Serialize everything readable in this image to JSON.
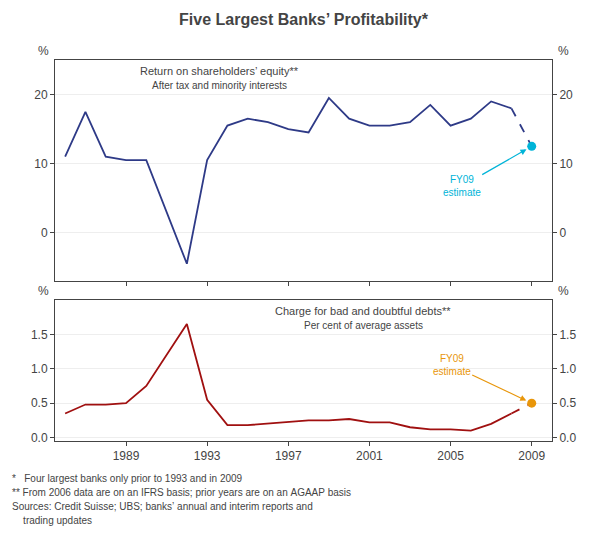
{
  "title": "Five Largest Banks’ Profitability*",
  "footnotes": [
    "*   Four largest banks only prior to 1993 and in 2009",
    "** From 2006 data are on an IFRS basis; prior years are on an AGAAP basis",
    "Sources: Credit Suisse; UBS; banks’ annual and interim reports and",
    "    trading updates"
  ],
  "chart_data": [
    {
      "type": "line",
      "title": "Return on shareholders’ equity**",
      "subtitle": "After tax and minority interests",
      "ylabel": "%",
      "y2label": "%",
      "x": [
        1986,
        1987,
        1988,
        1989,
        1990,
        1991,
        1992,
        1993,
        1994,
        1995,
        1996,
        1997,
        1998,
        1999,
        2000,
        2001,
        2002,
        2003,
        2004,
        2005,
        2006,
        2007,
        2008
      ],
      "values": [
        11.0,
        17.5,
        11.0,
        10.5,
        10.5,
        3.0,
        -4.5,
        10.5,
        15.5,
        16.5,
        16.0,
        15.0,
        14.5,
        19.5,
        16.5,
        15.5,
        15.5,
        16.0,
        18.5,
        15.5,
        16.5,
        19.0,
        18.0
      ],
      "color": "#2e3a87",
      "estimate": {
        "x": 2009,
        "value": 12.5,
        "color": "#00b4d8",
        "line_style": "dashed",
        "marker": "circle"
      },
      "annotations": [
        {
          "text": "FY09\nestimate",
          "x": 2009,
          "y": 12.5,
          "color": "#00b4d8"
        }
      ],
      "xlim": [
        1985.5,
        2010.0
      ],
      "xticks": [
        1989,
        1993,
        1997,
        2001,
        2005,
        2009
      ],
      "ylim": [
        -7,
        25
      ],
      "yticks": [
        0,
        10,
        20
      ],
      "y2lim": [
        -7,
        25
      ],
      "y2ticks": [
        0,
        10,
        20
      ],
      "grid": true,
      "tick_labels": "y"
    },
    {
      "type": "line",
      "title": "Charge for bad and doubtful debts**",
      "subtitle": "Per cent of average assets",
      "ylabel": "%",
      "y2label": "%",
      "x": [
        1986,
        1987,
        1988,
        1989,
        1990,
        1991,
        1992,
        1993,
        1994,
        1995,
        1996,
        1997,
        1998,
        1999,
        2000,
        2001,
        2002,
        2003,
        2004,
        2005,
        2006,
        2007,
        2008
      ],
      "values": [
        0.35,
        0.48,
        0.48,
        0.5,
        0.75,
        1.2,
        1.65,
        0.55,
        0.18,
        0.18,
        0.2,
        0.22,
        0.25,
        0.25,
        0.27,
        0.22,
        0.22,
        0.15,
        0.12,
        0.12,
        0.1,
        0.2,
        0.35
      ],
      "color": "#a01010",
      "estimate": {
        "x": 2009,
        "value": 0.5,
        "color": "#e8960a",
        "line_style": "dashed",
        "marker": "circle"
      },
      "annotations": [
        {
          "text": "FY09\nestimate",
          "x": 2009,
          "y": 0.5,
          "color": "#e8960a"
        }
      ],
      "xlim": [
        1985.5,
        2010.0
      ],
      "xticks": [
        1989,
        1993,
        1997,
        2001,
        2005,
        2009
      ],
      "ylim": [
        -0.05,
        2.0
      ],
      "yticks": [
        {
          "value": 0,
          "label": "0.0"
        },
        0.5,
        {
          "value": 1,
          "label": "1.0"
        },
        1.5
      ],
      "y2lim": [
        -0.05,
        2.0
      ],
      "y2ticks": [
        {
          "value": 0,
          "label": "0.0"
        },
        0.5,
        {
          "value": 1,
          "label": "1.0"
        },
        1.5
      ],
      "grid": true
    }
  ]
}
